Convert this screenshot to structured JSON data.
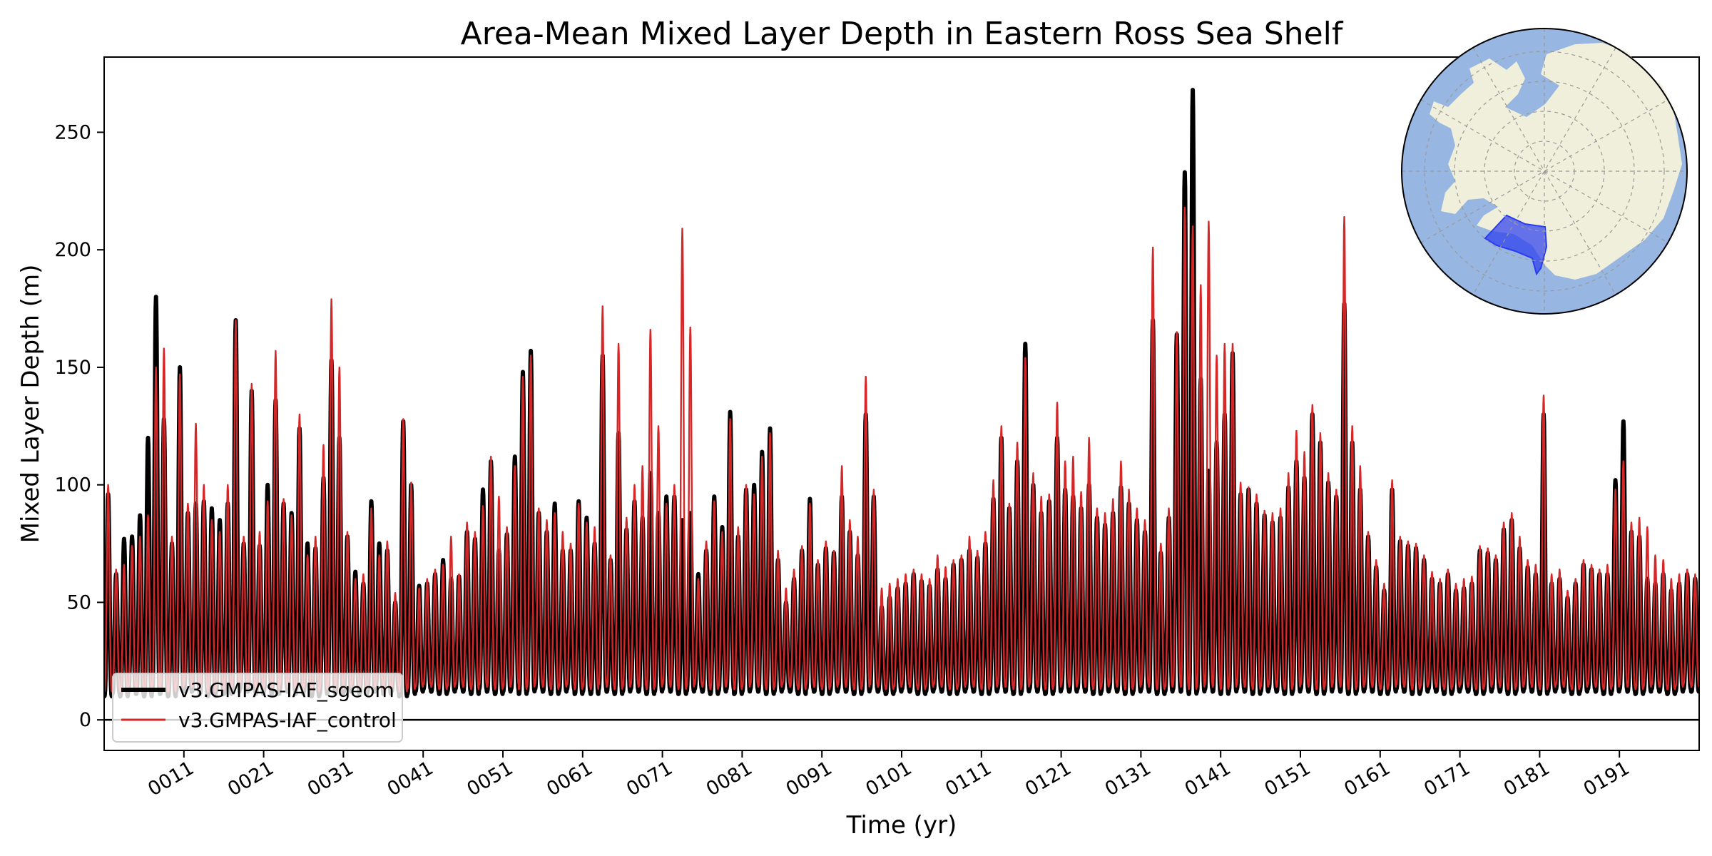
{
  "chart_data": {
    "type": "line",
    "title": "Area-Mean Mixed Layer Depth in Eastern Ross Sea Shelf",
    "xlabel": "Time (yr)",
    "ylabel": "Mixed Layer Depth (m)",
    "x_unit": "model year",
    "xlim": [
      1,
      201
    ],
    "ylim": [
      -13,
      282
    ],
    "x_ticks": [
      11,
      21,
      31,
      41,
      51,
      61,
      71,
      81,
      91,
      101,
      111,
      121,
      131,
      141,
      151,
      161,
      171,
      181,
      191
    ],
    "x_tick_labels": [
      "0011",
      "0021",
      "0031",
      "0041",
      "0051",
      "0061",
      "0071",
      "0081",
      "0091",
      "0101",
      "0111",
      "0121",
      "0131",
      "0141",
      "0151",
      "0161",
      "0171",
      "0181",
      "0191"
    ],
    "y_ticks": [
      0,
      50,
      100,
      150,
      200,
      250
    ],
    "y_tick_labels": [
      "0",
      "50",
      "100",
      "150",
      "200",
      "250"
    ],
    "zero_line": 0,
    "grid": false,
    "legend_position": "lower-left",
    "series": [
      {
        "name": "v3.GMPAS-IAF_sgeom",
        "color": "#000000",
        "annual_winter_peaks_m": [
          96,
          62,
          77,
          78,
          87,
          120,
          180,
          128,
          75,
          150,
          88,
          92,
          93,
          90,
          85,
          92,
          170,
          75,
          140,
          74,
          100,
          136,
          92,
          88,
          124,
          75,
          73,
          103,
          153,
          120,
          78,
          63,
          58,
          93,
          75,
          72,
          50,
          127,
          100,
          57,
          58,
          62,
          68,
          60,
          61,
          80,
          77,
          98,
          110,
          72,
          79,
          112,
          148,
          157,
          88,
          80,
          92,
          72,
          72,
          93,
          86,
          75,
          155,
          68,
          122,
          81,
          93,
          86,
          105,
          88,
          95,
          95,
          85,
          88,
          62,
          72,
          95,
          82,
          131,
          78,
          98,
          100,
          114,
          124,
          68,
          50,
          60,
          72,
          94,
          66,
          73,
          71,
          95,
          80,
          70,
          130,
          95,
          48,
          52,
          56,
          58,
          62,
          59,
          57,
          64,
          60,
          66,
          68,
          72,
          69,
          75,
          94,
          120,
          90,
          110,
          160,
          100,
          88,
          93,
          120,
          98,
          95,
          90,
          100,
          86,
          83,
          88,
          99,
          92,
          85,
          80,
          170,
          71,
          86,
          164,
          233,
          268,
          145,
          106,
          118,
          130,
          156,
          96,
          98,
          92,
          87,
          84,
          86,
          99,
          110,
          103,
          130,
          118,
          101,
          95,
          177,
          118,
          98,
          78,
          65,
          55,
          98,
          76,
          74,
          73,
          68,
          60,
          58,
          62,
          55,
          56,
          58,
          72,
          71,
          68,
          81,
          85,
          73,
          65,
          62,
          130,
          58,
          60,
          52,
          58,
          66,
          64,
          62,
          62,
          102,
          127,
          80,
          78,
          60,
          58,
          62,
          55,
          58,
          62,
          60
        ],
        "annual_summer_minima_m": [
          10,
          11,
          10,
          12,
          11,
          10,
          12,
          11,
          10,
          12,
          13,
          12,
          11,
          10,
          12,
          11,
          12,
          13,
          12,
          11,
          12,
          11,
          13,
          12,
          11,
          12,
          10,
          11,
          12,
          11,
          12,
          13,
          11,
          12,
          13,
          11,
          12,
          10,
          11,
          12,
          13,
          12,
          11,
          12,
          13,
          12,
          11,
          13,
          12,
          11,
          12,
          13,
          11,
          12,
          13,
          12,
          11,
          12,
          13,
          11,
          12,
          11,
          13,
          12,
          11,
          12,
          13,
          12,
          11,
          12,
          13,
          12,
          11,
          12,
          13,
          12,
          11,
          12,
          13,
          11,
          12,
          13,
          12,
          11,
          12,
          13,
          12,
          11,
          13,
          12,
          11,
          12,
          13,
          12,
          11,
          12,
          13,
          12,
          11,
          12,
          13,
          12,
          11,
          12,
          13,
          12,
          11,
          12,
          13,
          12,
          11,
          12,
          13,
          12,
          11,
          12,
          13,
          12,
          11,
          12,
          13,
          12,
          13,
          12,
          11,
          12,
          13,
          12,
          11,
          12,
          13,
          12,
          11,
          12,
          13,
          12,
          11,
          12,
          13,
          12,
          11,
          12,
          13,
          12,
          11,
          12,
          13,
          12,
          11,
          12,
          13,
          12,
          11,
          12,
          13,
          12,
          11,
          12,
          13,
          12,
          11,
          12,
          13,
          12,
          11,
          12,
          13,
          12,
          11,
          12,
          13,
          12,
          11,
          12,
          13,
          12,
          11,
          12,
          13,
          12,
          11,
          12,
          13,
          12,
          11,
          12,
          13,
          12,
          11,
          12,
          13,
          12,
          11,
          12,
          13,
          12,
          11,
          12,
          13,
          12
        ]
      },
      {
        "name": "v3.GMPAS-IAF_control",
        "color": "#d62728",
        "annual_winter_peaks_m": [
          100,
          64,
          66,
          74,
          78,
          87,
          150,
          158,
          78,
          147,
          92,
          126,
          100,
          85,
          80,
          100,
          170,
          78,
          143,
          80,
          93,
          157,
          94,
          87,
          130,
          70,
          78,
          117,
          179,
          150,
          80,
          60,
          62,
          90,
          70,
          76,
          54,
          128,
          101,
          56,
          60,
          64,
          66,
          78,
          62,
          84,
          80,
          91,
          112,
          95,
          82,
          108,
          146,
          155,
          90,
          85,
          88,
          80,
          75,
          92,
          84,
          82,
          176,
          70,
          160,
          86,
          100,
          108,
          166,
          125,
          92,
          100,
          209,
          167,
          60,
          76,
          93,
          80,
          128,
          82,
          100,
          96,
          112,
          122,
          72,
          56,
          64,
          74,
          92,
          68,
          76,
          72,
          108,
          85,
          78,
          146,
          98,
          56,
          58,
          60,
          62,
          64,
          62,
          60,
          70,
          65,
          68,
          70,
          78,
          72,
          80,
          102,
          125,
          92,
          118,
          154,
          105,
          95,
          96,
          135,
          110,
          112,
          97,
          120,
          90,
          88,
          94,
          110,
          98,
          90,
          85,
          201,
          75,
          90,
          165,
          218,
          210,
          185,
          212,
          155,
          160,
          160,
          101,
          99,
          96,
          89,
          88,
          90,
          105,
          123,
          114,
          134,
          122,
          105,
          98,
          214,
          125,
          108,
          80,
          68,
          58,
          102,
          78,
          76,
          75,
          70,
          63,
          60,
          64,
          58,
          60,
          61,
          74,
          73,
          70,
          84,
          88,
          78,
          68,
          66,
          138,
          62,
          64,
          55,
          60,
          68,
          66,
          64,
          66,
          98,
          110,
          84,
          86,
          82,
          70,
          68,
          60,
          62,
          64,
          62
        ],
        "annual_summer_minima_m": [
          12,
          13,
          12,
          14,
          13,
          12,
          14,
          13,
          12,
          14,
          15,
          14,
          13,
          12,
          14,
          13,
          14,
          15,
          14,
          13,
          14,
          13,
          15,
          14,
          13,
          14,
          12,
          13,
          14,
          13,
          14,
          15,
          13,
          14,
          15,
          13,
          14,
          12,
          13,
          14,
          15,
          14,
          13,
          14,
          15,
          14,
          13,
          15,
          14,
          13,
          14,
          15,
          13,
          14,
          15,
          14,
          13,
          14,
          15,
          13,
          14,
          13,
          15,
          14,
          13,
          14,
          15,
          14,
          13,
          14,
          15,
          14,
          13,
          14,
          15,
          14,
          13,
          14,
          15,
          13,
          14,
          15,
          14,
          13,
          14,
          15,
          14,
          13,
          15,
          14,
          13,
          14,
          15,
          14,
          13,
          14,
          15,
          14,
          13,
          14,
          15,
          14,
          13,
          14,
          15,
          14,
          13,
          14,
          15,
          14,
          13,
          14,
          15,
          14,
          13,
          14,
          15,
          14,
          13,
          14,
          15,
          14,
          15,
          14,
          13,
          14,
          15,
          14,
          13,
          14,
          15,
          14,
          13,
          14,
          15,
          14,
          13,
          14,
          15,
          14,
          13,
          14,
          15,
          14,
          13,
          14,
          15,
          14,
          13,
          14,
          15,
          14,
          13,
          14,
          15,
          14,
          13,
          14,
          15,
          14,
          13,
          14,
          15,
          14,
          13,
          14,
          15,
          14,
          13,
          14,
          15,
          14,
          13,
          14,
          15,
          14,
          13,
          14,
          15,
          14,
          13,
          14,
          15,
          14,
          13,
          14,
          15,
          14,
          13,
          14,
          15,
          14,
          13,
          14,
          15,
          14,
          13,
          14,
          15,
          14
        ]
      }
    ],
    "inset_map": {
      "projection": "south-polar-stereographic",
      "ocean_color": "#97b6e1",
      "land_color": "#efefdb",
      "region_color": "#2a3cf0",
      "region_description_hidden": true
    }
  }
}
